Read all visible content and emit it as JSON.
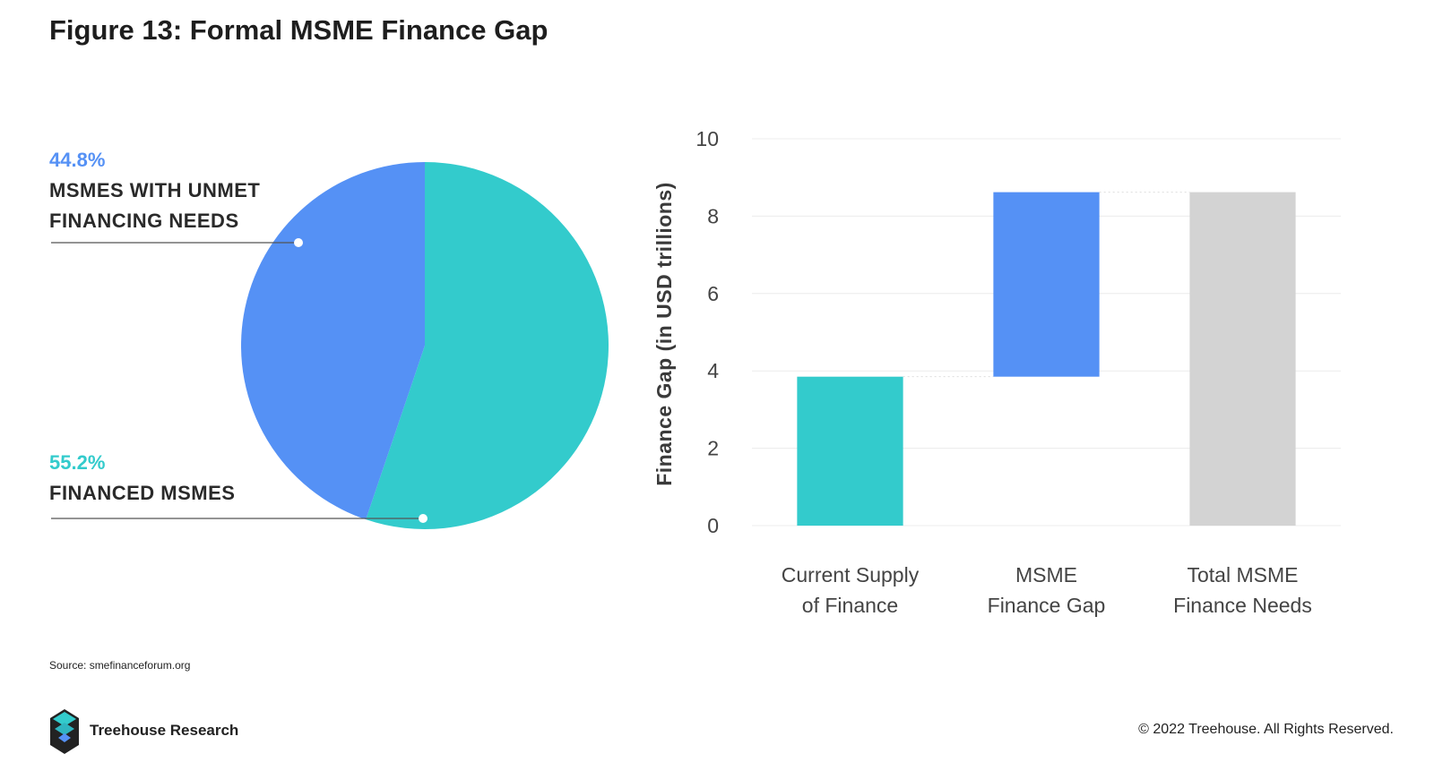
{
  "title": "Figure 13: Formal MSME Finance Gap",
  "source": "Source: smefinanceforum.org",
  "brand": "Treehouse Research",
  "copyright": "© 2022 Treehouse. All Rights Reserved.",
  "chart_data": [
    {
      "type": "pie",
      "slices": [
        {
          "label": "MSMES WITH UNMET FINANCING NEEDS",
          "label_lines": [
            "MSMES WITH UNMET",
            "FINANCING NEEDS"
          ],
          "value": 44.8,
          "value_label": "44.8%",
          "color": "#5591f5"
        },
        {
          "label": "FINANCED MSMES",
          "label_lines": [
            "FINANCED MSMES"
          ],
          "value": 55.2,
          "value_label": "55.2%",
          "color": "#33cbcc"
        }
      ]
    },
    {
      "type": "bar",
      "subtype": "waterfall",
      "ylabel": "Finance Gap (in USD trillions)",
      "ylim": [
        0,
        10
      ],
      "yticks": [
        "0",
        "2",
        "4",
        "6",
        "8",
        "10"
      ],
      "grid": true,
      "categories": [
        {
          "lines": [
            "Current Supply",
            "of Finance"
          ]
        },
        {
          "lines": [
            "MSME",
            "Finance Gap"
          ]
        },
        {
          "lines": [
            "Total MSME",
            "Finance Needs"
          ]
        }
      ],
      "bars": [
        {
          "base": 0,
          "value": 3.85,
          "color": "#33cbcc"
        },
        {
          "base": 3.85,
          "value": 4.77,
          "color": "#5591f5"
        },
        {
          "base": 0,
          "value": 8.62,
          "color": "#d3d3d3"
        }
      ]
    }
  ]
}
